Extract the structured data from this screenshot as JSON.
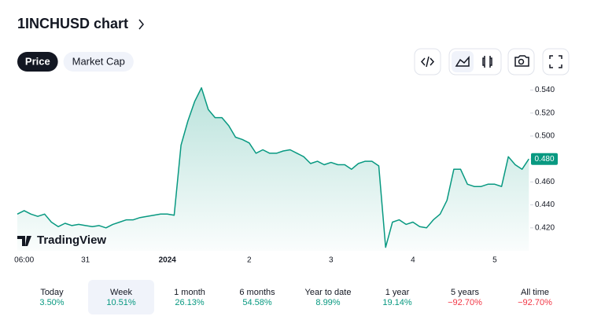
{
  "header": {
    "title": "1INCHUSD chart"
  },
  "tabs": [
    {
      "label": "Price",
      "active": true
    },
    {
      "label": "Market Cap",
      "active": false
    }
  ],
  "brand": "TradingView",
  "chart_data": {
    "type": "area",
    "color": "#089981",
    "categories": [
      null,
      "06:00",
      null,
      null,
      null,
      null,
      null,
      null,
      null,
      null,
      "31",
      null,
      null,
      null,
      null,
      null,
      null,
      null,
      null,
      null,
      null,
      null,
      "2024",
      null,
      null,
      null,
      null,
      null,
      null,
      null,
      null,
      null,
      null,
      null,
      "2",
      null,
      null,
      null,
      null,
      null,
      null,
      null,
      null,
      null,
      null,
      null,
      "3",
      null,
      null,
      null,
      null,
      null,
      null,
      null,
      null,
      null,
      null,
      null,
      "4",
      null,
      null,
      null,
      null,
      null,
      null,
      null,
      null,
      null,
      null,
      null,
      "5",
      null,
      null,
      null,
      null,
      null
    ],
    "values": [
      0.432,
      0.435,
      0.432,
      0.43,
      0.432,
      0.425,
      0.421,
      0.424,
      0.422,
      0.423,
      0.422,
      0.421,
      0.422,
      0.42,
      0.423,
      0.425,
      0.427,
      0.427,
      0.429,
      0.43,
      0.431,
      0.432,
      0.432,
      0.431,
      0.492,
      0.513,
      0.53,
      0.542,
      0.523,
      0.516,
      0.516,
      0.509,
      0.499,
      0.497,
      0.494,
      0.485,
      0.488,
      0.485,
      0.485,
      0.487,
      0.488,
      0.485,
      0.482,
      0.476,
      0.478,
      0.475,
      0.477,
      0.475,
      0.475,
      0.471,
      0.476,
      0.478,
      0.478,
      0.474,
      0.403,
      0.425,
      0.427,
      0.423,
      0.425,
      0.421,
      0.42,
      0.427,
      0.432,
      0.444,
      0.471,
      0.471,
      0.458,
      0.456,
      0.456,
      0.458,
      0.458,
      0.456,
      0.482,
      0.475,
      0.471,
      0.48
    ],
    "ylim": [
      0.4,
      0.55
    ],
    "yticks": [
      {
        "value": 0.42,
        "label": "0.420"
      },
      {
        "value": 0.44,
        "label": "0.440"
      },
      {
        "value": 0.46,
        "label": "0.460"
      },
      {
        "value": 0.48,
        "label": "0.480"
      },
      {
        "value": 0.5,
        "label": "0.500"
      },
      {
        "value": 0.52,
        "label": "0.520"
      },
      {
        "value": 0.54,
        "label": "0.540"
      }
    ],
    "current_price": {
      "value": 0.48,
      "label": "0.480"
    }
  },
  "periods": [
    {
      "label": "Today",
      "change": "3.50%",
      "color": "#089981",
      "active": false
    },
    {
      "label": "Week",
      "change": "10.51%",
      "color": "#089981",
      "active": true
    },
    {
      "label": "1 month",
      "change": "26.13%",
      "color": "#089981",
      "active": false
    },
    {
      "label": "6 months",
      "change": "54.58%",
      "color": "#089981",
      "active": false
    },
    {
      "label": "Year to date",
      "change": "8.99%",
      "color": "#089981",
      "active": false
    },
    {
      "label": "1 year",
      "change": "19.14%",
      "color": "#089981",
      "active": false
    },
    {
      "label": "5 years",
      "change": "−92.70%",
      "color": "#f23645",
      "active": false
    },
    {
      "label": "All time",
      "change": "−92.70%",
      "color": "#f23645",
      "active": false
    }
  ]
}
